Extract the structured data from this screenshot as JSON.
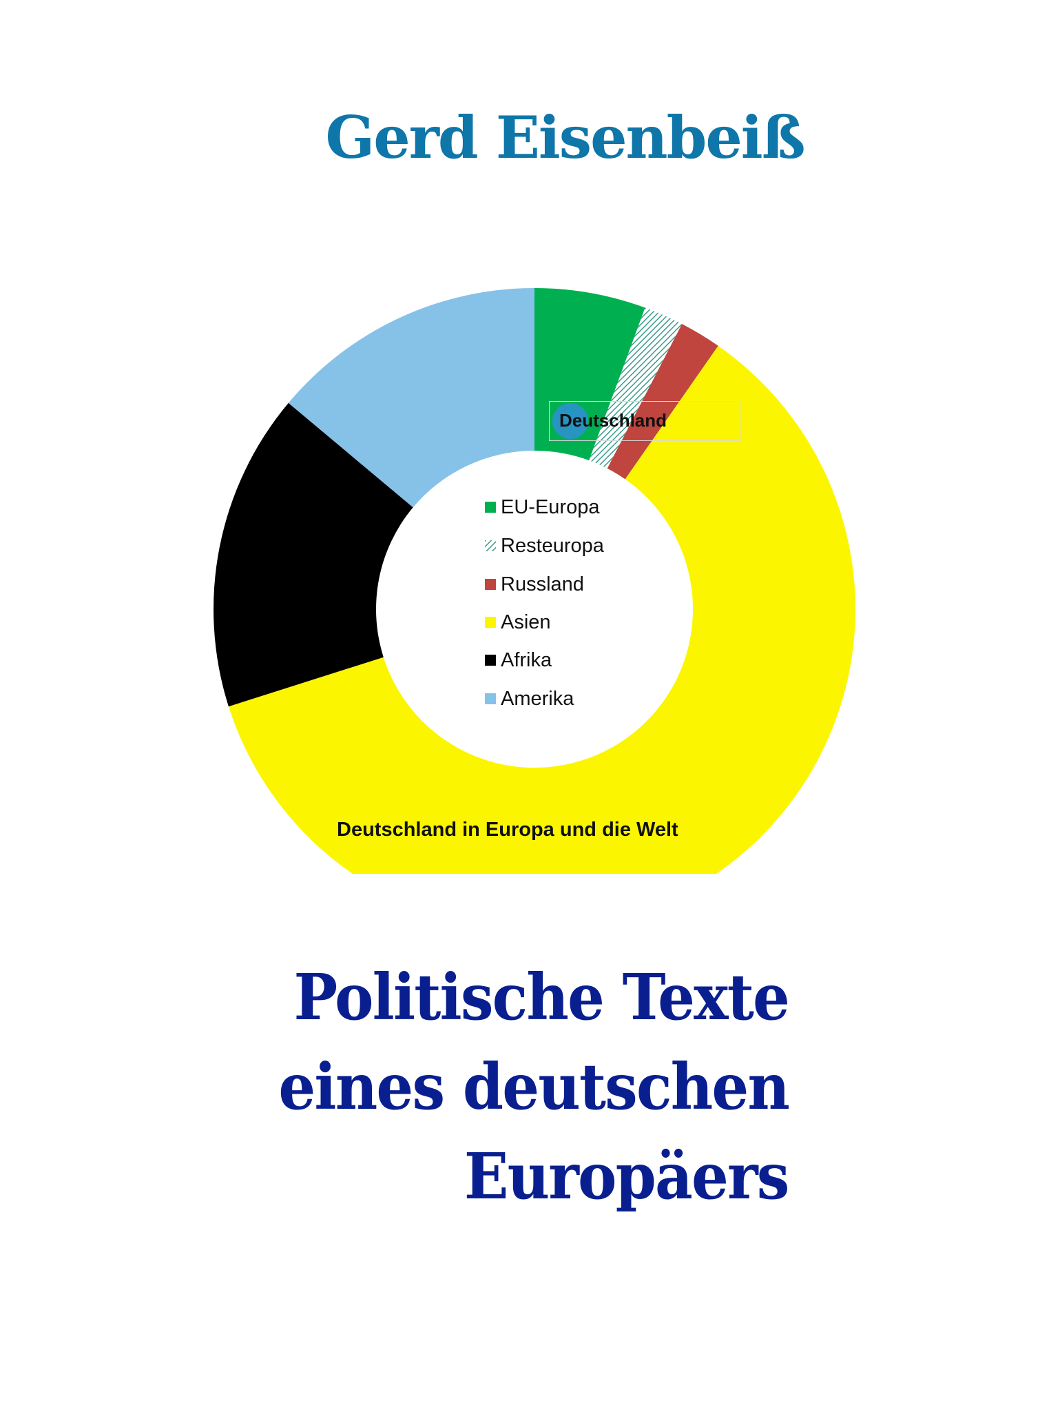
{
  "cover": {
    "author": "Gerd Eisenbeiß",
    "author_color": "#0e76a8",
    "title_lines": [
      "Politische Texte",
      "eines deutschen",
      "Europäers"
    ],
    "title_color": "#0a1f8f"
  },
  "chart_data": {
    "type": "pie",
    "variant": "donut",
    "title": "Deutschland in Europa und die Welt",
    "callout": "Deutschland",
    "legend_placement": "center",
    "categories": [
      "EU-Europa",
      "Resteuropa",
      "Russland",
      "Asien",
      "Afrika",
      "Amerika"
    ],
    "values": [
      5.6,
      2.0,
      2.1,
      60.4,
      16.0,
      13.9
    ],
    "unit": "percent (estimated)",
    "colors": [
      "#00b050",
      "hatched-teal",
      "#c0453f",
      "#fbf600",
      "#000000",
      "#86c2e8"
    ]
  }
}
